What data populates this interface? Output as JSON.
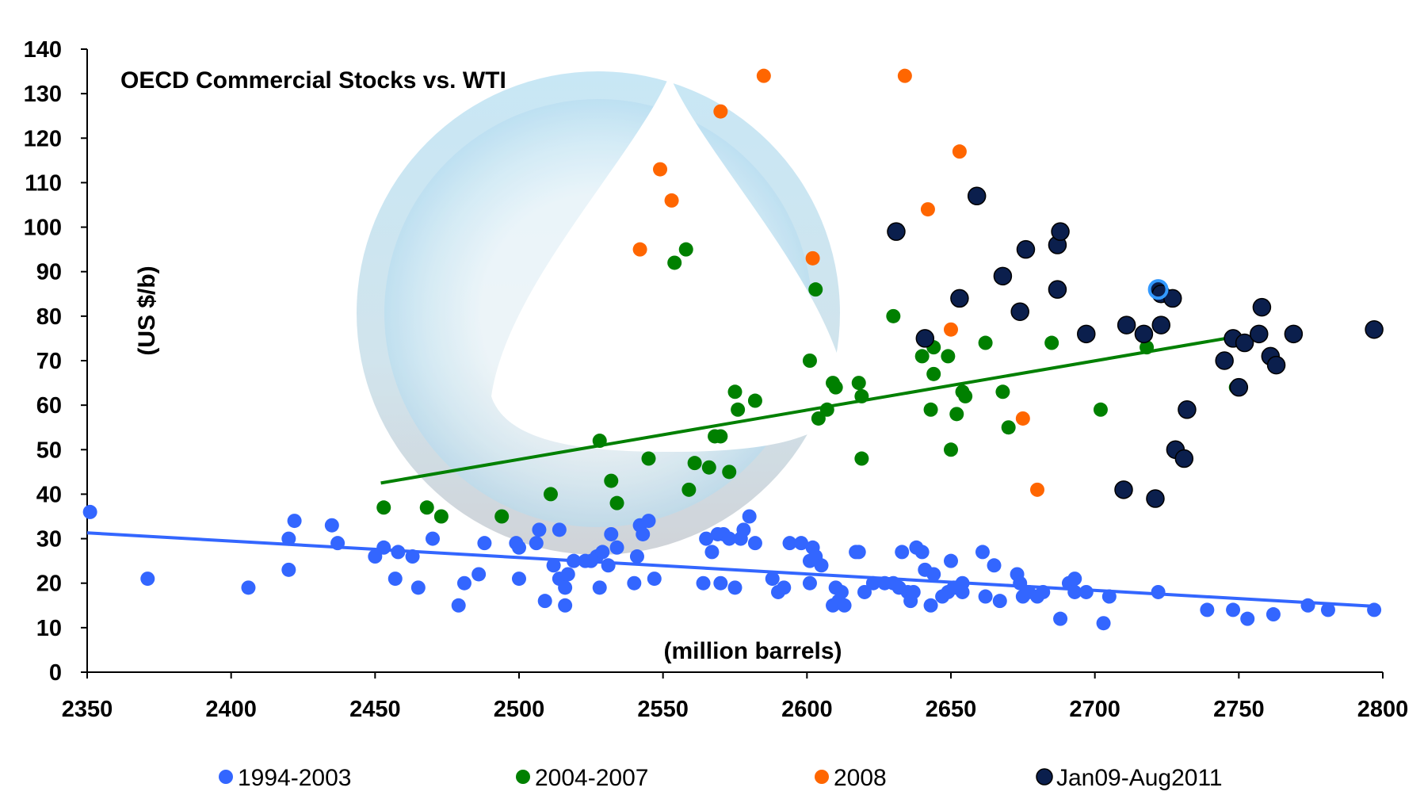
{
  "chart_data": {
    "type": "scatter",
    "title": "OECD Commercial Stocks vs. WTI",
    "xlabel": "(million barrels)",
    "ylabel": "(US $/b)",
    "xlim": [
      2350,
      2800
    ],
    "ylim": [
      0,
      140
    ],
    "xticks": [
      2350,
      2400,
      2450,
      2500,
      2550,
      2600,
      2650,
      2700,
      2750,
      2800
    ],
    "yticks": [
      0,
      10,
      20,
      30,
      40,
      50,
      60,
      70,
      80,
      90,
      100,
      110,
      120,
      130,
      140
    ],
    "grid": false,
    "legend_position": "bottom",
    "series": [
      {
        "name": "1994-2003",
        "color": "#3366ff",
        "points": [
          [
            2351,
            36
          ],
          [
            2371,
            21
          ],
          [
            2406,
            19
          ],
          [
            2420,
            30
          ],
          [
            2422,
            34
          ],
          [
            2420,
            23
          ],
          [
            2435,
            33
          ],
          [
            2437,
            29
          ],
          [
            2450,
            26
          ],
          [
            2453,
            28
          ],
          [
            2457,
            21
          ],
          [
            2458,
            27
          ],
          [
            2463,
            26
          ],
          [
            2465,
            19
          ],
          [
            2470,
            30
          ],
          [
            2479,
            15
          ],
          [
            2481,
            20
          ],
          [
            2486,
            22
          ],
          [
            2488,
            29
          ],
          [
            2499,
            29
          ],
          [
            2500,
            21
          ],
          [
            2500,
            28
          ],
          [
            2506,
            29
          ],
          [
            2507,
            32
          ],
          [
            2509,
            16
          ],
          [
            2512,
            24
          ],
          [
            2514,
            32
          ],
          [
            2514,
            21
          ],
          [
            2516,
            19
          ],
          [
            2516,
            15
          ],
          [
            2517,
            22
          ],
          [
            2519,
            25
          ],
          [
            2523,
            25
          ],
          [
            2525,
            25
          ],
          [
            2527,
            26
          ],
          [
            2528,
            19
          ],
          [
            2529,
            27
          ],
          [
            2531,
            24
          ],
          [
            2532,
            31
          ],
          [
            2534,
            28
          ],
          [
            2540,
            20
          ],
          [
            2541,
            26
          ],
          [
            2542,
            33
          ],
          [
            2543,
            31
          ],
          [
            2545,
            34
          ],
          [
            2547,
            21
          ],
          [
            2564,
            20
          ],
          [
            2565,
            30
          ],
          [
            2567,
            27
          ],
          [
            2569,
            31
          ],
          [
            2570,
            20
          ],
          [
            2571,
            31
          ],
          [
            2573,
            30
          ],
          [
            2575,
            19
          ],
          [
            2577,
            30
          ],
          [
            2578,
            32
          ],
          [
            2580,
            35
          ],
          [
            2582,
            29
          ],
          [
            2588,
            21
          ],
          [
            2590,
            18
          ],
          [
            2592,
            19
          ],
          [
            2594,
            29
          ],
          [
            2598,
            29
          ],
          [
            2601,
            25
          ],
          [
            2601,
            20
          ],
          [
            2602,
            28
          ],
          [
            2603,
            26
          ],
          [
            2605,
            24
          ],
          [
            2609,
            15
          ],
          [
            2610,
            19
          ],
          [
            2611,
            16
          ],
          [
            2612,
            18
          ],
          [
            2613,
            15
          ],
          [
            2617,
            27
          ],
          [
            2618,
            27
          ],
          [
            2620,
            18
          ],
          [
            2623,
            20
          ],
          [
            2627,
            20
          ],
          [
            2630,
            20
          ],
          [
            2632,
            19
          ],
          [
            2633,
            27
          ],
          [
            2635,
            18
          ],
          [
            2636,
            16
          ],
          [
            2637,
            18
          ],
          [
            2638,
            28
          ],
          [
            2640,
            27
          ],
          [
            2641,
            23
          ],
          [
            2643,
            15
          ],
          [
            2644,
            22
          ],
          [
            2647,
            17
          ],
          [
            2649,
            18
          ],
          [
            2650,
            25
          ],
          [
            2651,
            19
          ],
          [
            2652,
            19
          ],
          [
            2654,
            20
          ],
          [
            2654,
            18
          ],
          [
            2661,
            27
          ],
          [
            2662,
            17
          ],
          [
            2665,
            24
          ],
          [
            2667,
            16
          ],
          [
            2673,
            22
          ],
          [
            2674,
            20
          ],
          [
            2675,
            17
          ],
          [
            2677,
            18
          ],
          [
            2680,
            17
          ],
          [
            2682,
            18
          ],
          [
            2688,
            12
          ],
          [
            2691,
            20
          ],
          [
            2693,
            21
          ],
          [
            2693,
            18
          ],
          [
            2697,
            18
          ],
          [
            2703,
            11
          ],
          [
            2705,
            17
          ],
          [
            2722,
            18
          ],
          [
            2739,
            14
          ],
          [
            2748,
            14
          ],
          [
            2753,
            12
          ],
          [
            2762,
            13
          ],
          [
            2774,
            15
          ],
          [
            2781,
            14
          ],
          [
            2797,
            14
          ]
        ]
      },
      {
        "name": "2004-2007",
        "color": "#008000",
        "points": [
          [
            2453,
            37
          ],
          [
            2468,
            37
          ],
          [
            2473,
            35
          ],
          [
            2494,
            35
          ],
          [
            2511,
            40
          ],
          [
            2528,
            52
          ],
          [
            2532,
            43
          ],
          [
            2534,
            38
          ],
          [
            2545,
            48
          ],
          [
            2554,
            92
          ],
          [
            2558,
            95
          ],
          [
            2559,
            41
          ],
          [
            2561,
            47
          ],
          [
            2566,
            46
          ],
          [
            2568,
            53
          ],
          [
            2570,
            53
          ],
          [
            2573,
            45
          ],
          [
            2575,
            63
          ],
          [
            2576,
            59
          ],
          [
            2582,
            61
          ],
          [
            2601,
            70
          ],
          [
            2603,
            86
          ],
          [
            2604,
            57
          ],
          [
            2607,
            59
          ],
          [
            2609,
            65
          ],
          [
            2610,
            64
          ],
          [
            2618,
            65
          ],
          [
            2619,
            48
          ],
          [
            2619,
            62
          ],
          [
            2630,
            80
          ],
          [
            2640,
            71
          ],
          [
            2643,
            59
          ],
          [
            2644,
            67
          ],
          [
            2644,
            73
          ],
          [
            2649,
            71
          ],
          [
            2650,
            50
          ],
          [
            2652,
            58
          ],
          [
            2654,
            63
          ],
          [
            2655,
            62
          ],
          [
            2662,
            74
          ],
          [
            2668,
            63
          ],
          [
            2670,
            55
          ],
          [
            2685,
            74
          ],
          [
            2702,
            59
          ],
          [
            2718,
            73
          ],
          [
            2749,
            64
          ]
        ]
      },
      {
        "name": "2008",
        "color": "#ff6600",
        "points": [
          [
            2542,
            95
          ],
          [
            2549,
            113
          ],
          [
            2553,
            106
          ],
          [
            2570,
            126
          ],
          [
            2585,
            134
          ],
          [
            2602,
            93
          ],
          [
            2634,
            134
          ],
          [
            2642,
            104
          ],
          [
            2650,
            77
          ],
          [
            2653,
            117
          ],
          [
            2675,
            57
          ],
          [
            2680,
            41
          ]
        ]
      },
      {
        "name": "Jan09-Aug2011",
        "color": "#0b1f4d",
        "points": [
          [
            2631,
            99
          ],
          [
            2641,
            75
          ],
          [
            2653,
            84
          ],
          [
            2659,
            107
          ],
          [
            2668,
            89
          ],
          [
            2674,
            81
          ],
          [
            2676,
            95
          ],
          [
            2687,
            96
          ],
          [
            2687,
            86
          ],
          [
            2688,
            99
          ],
          [
            2697,
            76
          ],
          [
            2710,
            41
          ],
          [
            2711,
            78
          ],
          [
            2717,
            76
          ],
          [
            2721,
            39
          ],
          [
            2722,
            86
          ],
          [
            2723,
            78
          ],
          [
            2723,
            85
          ],
          [
            2727,
            84
          ],
          [
            2728,
            50
          ],
          [
            2731,
            48
          ],
          [
            2732,
            59
          ],
          [
            2745,
            70
          ],
          [
            2748,
            75
          ],
          [
            2750,
            64
          ],
          [
            2752,
            74
          ],
          [
            2757,
            76
          ],
          [
            2758,
            82
          ],
          [
            2761,
            71
          ],
          [
            2763,
            69
          ],
          [
            2769,
            76
          ],
          [
            2797,
            77
          ]
        ]
      }
    ],
    "trendlines": [
      {
        "series": "1994-2003",
        "color": "#3366ff",
        "x": [
          2350,
          2797
        ],
        "y": [
          31.3,
          14.8
        ]
      },
      {
        "series": "2004-2007",
        "color": "#008000",
        "x": [
          2452,
          2750
        ],
        "y": [
          42.5,
          75.5
        ]
      }
    ],
    "highlight_point": {
      "series": "Jan09-Aug2011",
      "x": 2722,
      "y": 86,
      "ring_color": "#3399ff"
    }
  }
}
